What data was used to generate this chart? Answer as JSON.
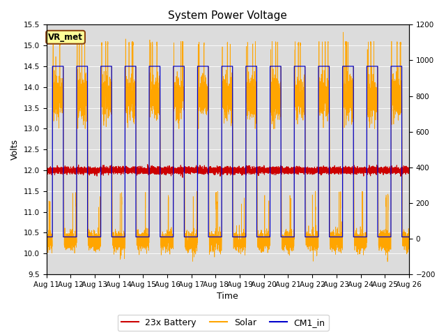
{
  "title": "System Power Voltage",
  "xlabel": "Time",
  "ylabel_left": "Volts",
  "ylim_left": [
    9.5,
    15.5
  ],
  "ylim_right": [
    -200,
    1200
  ],
  "yticks_left": [
    9.5,
    10.0,
    10.5,
    11.0,
    11.5,
    12.0,
    12.5,
    13.0,
    13.5,
    14.0,
    14.5,
    15.0,
    15.5
  ],
  "yticks_right": [
    -200,
    0,
    200,
    400,
    600,
    800,
    1000,
    1200
  ],
  "xtick_labels": [
    "Aug 11",
    "Aug 12",
    "Aug 13",
    "Aug 14",
    "Aug 15",
    "Aug 16",
    "Aug 17",
    "Aug 18",
    "Aug 19",
    "Aug 20",
    "Aug 21",
    "Aug 22",
    "Aug 23",
    "Aug 24",
    "Aug 25",
    "Aug 26"
  ],
  "num_days": 15,
  "annotation_text": "VR_met",
  "annotation_box_color": "#FFFF99",
  "annotation_border_color": "#8B4513",
  "background_color": "#DCDCDC",
  "colors": {
    "battery": "#CC0000",
    "solar": "#FFA500",
    "cm1": "#0000CC"
  },
  "legend_labels": [
    "23x Battery",
    "Solar",
    "CM1_in"
  ],
  "title_fontsize": 11,
  "axis_label_fontsize": 9,
  "tick_fontsize": 7.5
}
